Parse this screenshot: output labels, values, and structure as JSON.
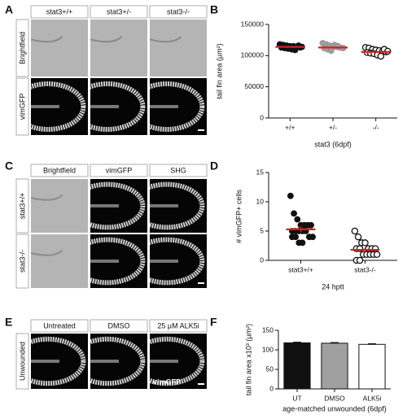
{
  "panel_letters": [
    "A",
    "B",
    "C",
    "D",
    "E",
    "F"
  ],
  "panel_a": {
    "columns": [
      "stat3+/+",
      "stat3+/-",
      "stat3-/-"
    ],
    "rows": [
      "Brightfield",
      "vimGFP"
    ]
  },
  "panel_c": {
    "columns": [
      "Brightfield",
      "vimGFP",
      "SHG"
    ],
    "rows": [
      "stat3+/+",
      "stat3-/-"
    ]
  },
  "panel_e": {
    "columns": [
      "Untreated",
      "DMSO",
      "25 µM ALK5i"
    ],
    "rows": [
      "Unwounded"
    ],
    "annotation": "vimGFP"
  },
  "chart_data": [
    {
      "type": "dot",
      "ylabel": "tail fin area (µm²)",
      "xlabel": "stat3 (6dpf)",
      "categories": [
        "+/+",
        "+/-",
        "-/-"
      ],
      "points": [
        [
          118000,
          117000,
          116000,
          115000,
          115000,
          114000,
          113000,
          113000,
          112000,
          111000,
          110000,
          109000,
          116000,
          114000
        ],
        [
          120000,
          118000,
          116000,
          115000,
          114000,
          113000,
          112000,
          112000,
          110000,
          108000,
          117000,
          115000
        ],
        [
          113000,
          112000,
          110000,
          109000,
          108000,
          107000,
          106000,
          105000,
          104000,
          103000,
          101000,
          99000,
          110000,
          107000
        ]
      ],
      "means": [
        114000,
        113000,
        106000
      ],
      "sem": [
        1000,
        1100,
        1200
      ],
      "colors": [
        "#111111",
        "#a0a0a0",
        "#ffffff"
      ],
      "mean_color": "#d62020",
      "ylim": [
        0,
        150000
      ],
      "yticks": [
        0,
        50000,
        100000,
        150000
      ]
    },
    {
      "type": "dot",
      "ylabel": "# vimGFP+ cells",
      "xlabel": "24 hptt",
      "categories": [
        "stat3+/+",
        "stat3-/-"
      ],
      "points": [
        [
          11,
          8,
          7,
          6,
          6,
          6,
          6,
          5,
          5,
          5,
          5,
          5,
          4,
          4,
          4,
          4,
          3,
          3
        ],
        [
          5,
          4,
          3,
          3,
          2,
          2,
          2,
          2,
          2,
          1,
          1,
          1,
          1,
          1,
          0,
          0
        ]
      ],
      "means": [
        5.3,
        1.8
      ],
      "sem": [
        0.5,
        0.4
      ],
      "colors": [
        "#111111",
        "#ffffff"
      ],
      "mean_color": "#d62020",
      "ylim": [
        0,
        15
      ],
      "yticks": [
        0,
        5,
        10,
        15
      ]
    },
    {
      "type": "bar",
      "ylabel": "tail fin area x10³ (µm²)",
      "xlabel": "age-matched unwounded (6dpf)",
      "categories": [
        "UT",
        "DMSO",
        "ALK5i"
      ],
      "values": [
        118,
        117,
        114
      ],
      "errors": [
        1.5,
        1.5,
        1.5
      ],
      "colors": [
        "#111111",
        "#a0a0a0",
        "#ffffff"
      ],
      "ylim": [
        0,
        150
      ],
      "yticks": [
        0,
        50,
        100,
        150
      ]
    }
  ]
}
